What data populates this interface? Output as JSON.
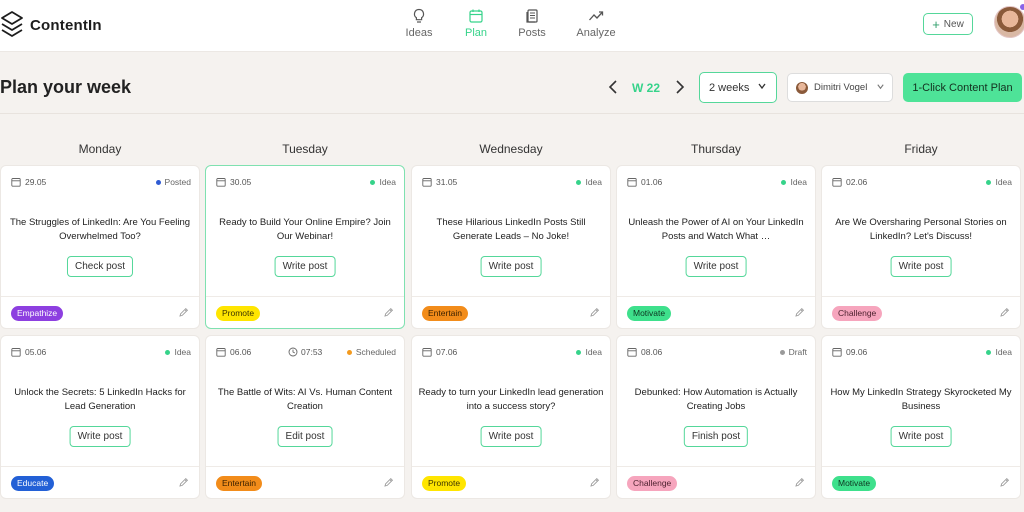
{
  "app": {
    "name": "ContentIn"
  },
  "nav": [
    {
      "label": "Ideas",
      "icon": "lightbulb-icon",
      "active": false
    },
    {
      "label": "Plan",
      "icon": "calendar-icon",
      "active": true
    },
    {
      "label": "Posts",
      "icon": "documents-icon",
      "active": false
    },
    {
      "label": "Analyze",
      "icon": "trend-icon",
      "active": false
    }
  ],
  "header": {
    "new_label": "New"
  },
  "plan": {
    "title": "Plan your week",
    "week_label": "W 22",
    "range_value": "2 weeks",
    "user_name": "Dimitri Vogel",
    "cta_label": "1-Click Content Plan"
  },
  "colors": {
    "accent": "#36d38a",
    "status": {
      "Posted": "#2f5bd3",
      "Idea": "#36d38a",
      "Scheduled": "#f39a1e",
      "Draft": "#9a9a9a"
    },
    "tags": {
      "Empathize": {
        "bg": "#8d3fe0",
        "fg": "#ffffff"
      },
      "Promote": {
        "bg": "#ffe500",
        "fg": "#3d3500"
      },
      "Entertain": {
        "bg": "#f28c1a",
        "fg": "#3d2200"
      },
      "Motivate": {
        "bg": "#3ee08c",
        "fg": "#0d3520"
      },
      "Challenge": {
        "bg": "#f6a5bd",
        "fg": "#4a1f2c"
      },
      "Educate": {
        "bg": "#2360d6",
        "fg": "#ffffff"
      }
    }
  },
  "days": [
    "Monday",
    "Tuesday",
    "Wednesday",
    "Thursday",
    "Friday"
  ],
  "weeks": [
    [
      {
        "date": "29.05",
        "time": "",
        "status": "Posted",
        "title": "The Struggles of LinkedIn: Are You Feeling Overwhelmed Too?",
        "action": "Check post",
        "tag": "Empathize"
      },
      {
        "date": "30.05",
        "time": "",
        "status": "Idea",
        "title": "Ready to Build Your Online Empire? Join Our Webinar!",
        "action": "Write post",
        "tag": "Promote"
      },
      {
        "date": "31.05",
        "time": "",
        "status": "Idea",
        "title": "These Hilarious LinkedIn Posts Still Generate Leads – No Joke!",
        "action": "Write post",
        "tag": "Entertain"
      },
      {
        "date": "01.06",
        "time": "",
        "status": "Idea",
        "title": "Unleash the Power of AI on Your LinkedIn Posts and Watch What …",
        "action": "Write post",
        "tag": "Motivate"
      },
      {
        "date": "02.06",
        "time": "",
        "status": "Idea",
        "title": "Are We Oversharing Personal Stories on LinkedIn? Let's Discuss!",
        "action": "Write post",
        "tag": "Challenge"
      }
    ],
    [
      {
        "date": "05.06",
        "time": "",
        "status": "Idea",
        "title": "Unlock the Secrets: 5 LinkedIn Hacks for Lead Generation",
        "action": "Write post",
        "tag": "Educate"
      },
      {
        "date": "06.06",
        "time": "07:53",
        "status": "Scheduled",
        "title": "The Battle of Wits: AI Vs. Human Content Creation",
        "action": "Edit post",
        "tag": "Entertain"
      },
      {
        "date": "07.06",
        "time": "",
        "status": "Idea",
        "title": "Ready to turn your LinkedIn lead generation into a success story?",
        "action": "Write post",
        "tag": "Promote"
      },
      {
        "date": "08.06",
        "time": "",
        "status": "Draft",
        "title": "Debunked: How Automation is Actually Creating Jobs",
        "action": "Finish post",
        "tag": "Challenge"
      },
      {
        "date": "09.06",
        "time": "",
        "status": "Idea",
        "title": "How My LinkedIn Strategy Skyrocketed My Business",
        "action": "Write post",
        "tag": "Motivate"
      }
    ]
  ]
}
